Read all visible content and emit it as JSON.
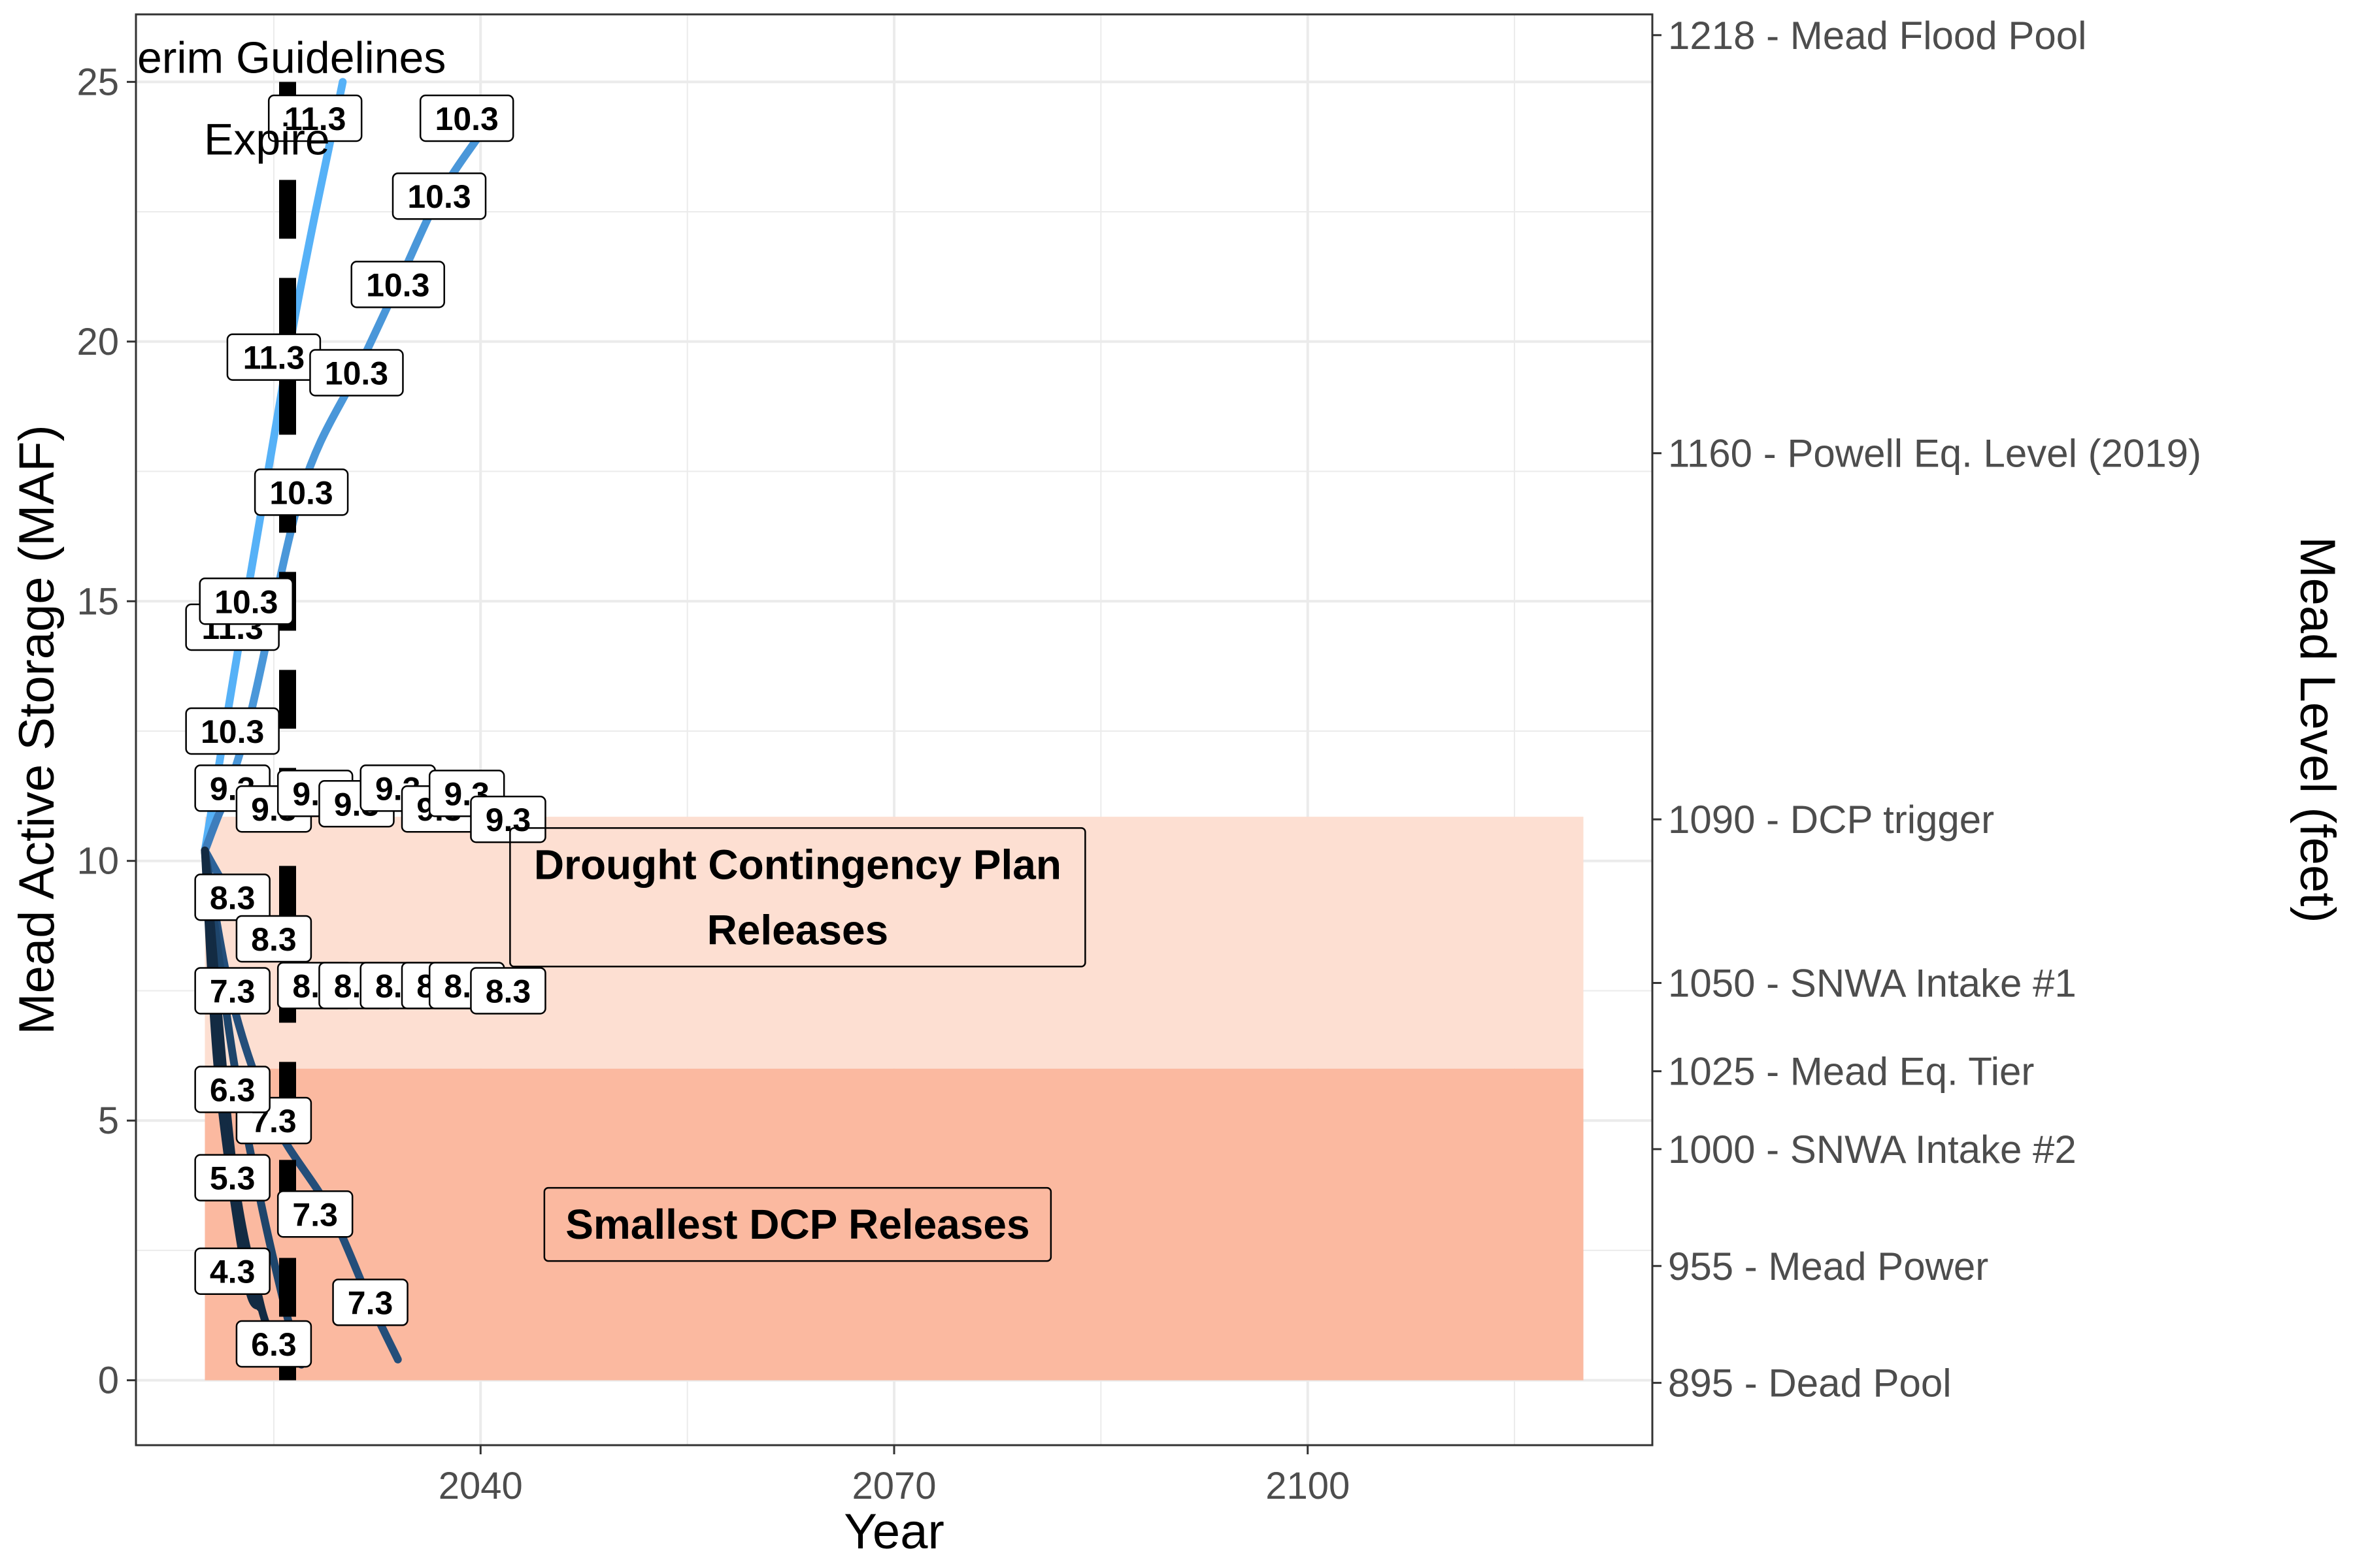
{
  "chart_data": {
    "type": "line",
    "xlabel": "Year",
    "ylabel": "Mead Active Storage (MAF)",
    "y2label": "Mead Level (feet)",
    "xlim": [
      2015,
      2125
    ],
    "ylim": [
      -1.25,
      26.3
    ],
    "x_ticks": [
      2040,
      2070,
      2100
    ],
    "y_ticks": [
      0,
      5,
      10,
      15,
      20,
      25
    ],
    "grid": true,
    "legend": "none",
    "colors": {
      "series": [
        "#56B1F7",
        "#4A97D9",
        "#3D7DBC",
        "#2E6399",
        "#244E7A",
        "#1E456B",
        "#132B43"
      ],
      "dcp_zone": "#FDDFD2",
      "smallest_zone": "#FBB9A0",
      "vline": "#000000",
      "grid": "#ebebeb"
    },
    "zones": [
      {
        "label": "Drought Contingency Plan Releases",
        "x0": 2020,
        "x1": 2120,
        "y0": 6.0,
        "y1": 10.85,
        "label_lines": [
          "Drought Contingency Plan",
          "Releases"
        ],
        "label_x": 2063,
        "label_y": 9.3
      },
      {
        "label": "Smallest DCP Releases",
        "x0": 2020,
        "x1": 2120,
        "y0": 0,
        "y1": 6.0,
        "label_lines": [
          "Smallest DCP Releases"
        ],
        "label_x": 2063,
        "label_y": 3.0
      }
    ],
    "vline": {
      "x": 2026,
      "annotation_lines": [
        "Interim Guidelines",
        "Expire"
      ],
      "annotation_x": 2024.5,
      "annotation_y": 25.3
    },
    "level_axis": [
      {
        "storage": 25.9,
        "level": "1218",
        "label": "Mead Flood Pool"
      },
      {
        "storage": 17.85,
        "level": "1160",
        "label": "Powell Eq. Level (2019)"
      },
      {
        "storage": 10.8,
        "level": "1090",
        "label": "DCP trigger"
      },
      {
        "storage": 7.65,
        "level": "1050",
        "label": "SNWA Intake #1"
      },
      {
        "storage": 5.95,
        "level": "1025",
        "label": "Mead Eq. Tier"
      },
      {
        "storage": 4.45,
        "level": "1000",
        "label": "SNWA Intake #2"
      },
      {
        "storage": 2.2,
        "level": "955",
        "label": "Mead Power"
      },
      {
        "storage": -0.05,
        "level": "895",
        "label": "Dead Pool"
      }
    ],
    "series": [
      {
        "release": "11.3",
        "x": [
          2020,
          2026,
          2030
        ],
        "y": [
          10.2,
          19.7,
          25.0
        ],
        "labels": [
          {
            "x": 2022,
            "y": 14.5
          },
          {
            "x": 2025,
            "y": 19.7
          },
          {
            "x": 2028,
            "y": 24.3
          }
        ]
      },
      {
        "release": "10.3",
        "x": [
          2020,
          2023,
          2027,
          2031,
          2034,
          2037,
          2040
        ],
        "y": [
          10.2,
          12.5,
          17.1,
          19.4,
          21.1,
          22.8,
          24.0
        ],
        "labels": [
          {
            "x": 2022,
            "y": 12.5
          },
          {
            "x": 2023,
            "y": 15.0
          },
          {
            "x": 2027,
            "y": 17.1
          },
          {
            "x": 2031,
            "y": 19.4
          },
          {
            "x": 2034,
            "y": 21.1
          },
          {
            "x": 2037,
            "y": 22.8
          },
          {
            "x": 2039,
            "y": 24.3
          }
        ]
      },
      {
        "release": "9.3",
        "x": [
          2020,
          2022,
          2025,
          2028,
          2031,
          2034,
          2037,
          2039,
          2042
        ],
        "y": [
          10.2,
          11.3,
          11.0,
          11.2,
          11.0,
          11.3,
          11.0,
          11.2,
          10.8
        ],
        "labels": [
          {
            "x": 2022,
            "y": 11.4
          },
          {
            "x": 2025,
            "y": 11.0
          },
          {
            "x": 2028,
            "y": 11.3
          },
          {
            "x": 2031,
            "y": 11.1
          },
          {
            "x": 2034,
            "y": 11.4
          },
          {
            "x": 2037,
            "y": 11.0
          },
          {
            "x": 2039,
            "y": 11.3
          },
          {
            "x": 2042,
            "y": 10.8
          }
        ]
      },
      {
        "release": "8.3",
        "x": [
          2020,
          2022,
          2025,
          2028,
          2031,
          2034,
          2037,
          2040,
          2042
        ],
        "y": [
          10.2,
          9.3,
          8.3,
          7.8,
          7.8,
          7.8,
          7.8,
          7.8,
          7.8
        ],
        "labels": [
          {
            "x": 2022,
            "y": 9.3
          },
          {
            "x": 2025,
            "y": 8.5
          },
          {
            "x": 2028,
            "y": 7.6
          },
          {
            "x": 2031,
            "y": 7.6
          },
          {
            "x": 2034,
            "y": 7.6
          },
          {
            "x": 2037,
            "y": 7.6
          },
          {
            "x": 2039,
            "y": 7.6
          },
          {
            "x": 2042,
            "y": 7.5
          }
        ]
      },
      {
        "release": "7.3",
        "x": [
          2020,
          2022,
          2025,
          2029,
          2032,
          2034
        ],
        "y": [
          10.2,
          7.3,
          5.0,
          3.3,
          1.5,
          0.4
        ],
        "labels": [
          {
            "x": 2022,
            "y": 7.5
          },
          {
            "x": 2025,
            "y": 5.0
          },
          {
            "x": 2028,
            "y": 3.2
          },
          {
            "x": 2032,
            "y": 1.5
          }
        ]
      },
      {
        "release": "6.3",
        "x": [
          2020,
          2022,
          2024,
          2026,
          2027
        ],
        "y": [
          10.2,
          6.3,
          3.5,
          1.2,
          0.3
        ],
        "labels": [
          {
            "x": 2022,
            "y": 5.6
          },
          {
            "x": 2025,
            "y": 0.7
          }
        ]
      },
      {
        "release": "5.3",
        "x": [
          2020,
          2022,
          2024,
          2025
        ],
        "y": [
          10.2,
          4.2,
          1.5,
          0.8
        ],
        "labels": [
          {
            "x": 2022,
            "y": 3.9
          }
        ]
      },
      {
        "release": "4.3",
        "x": [
          2020,
          2021,
          2023,
          2024
        ],
        "y": [
          10.2,
          5.8,
          2.0,
          1.4
        ],
        "labels": [
          {
            "x": 2022,
            "y": 2.1
          }
        ]
      }
    ]
  }
}
